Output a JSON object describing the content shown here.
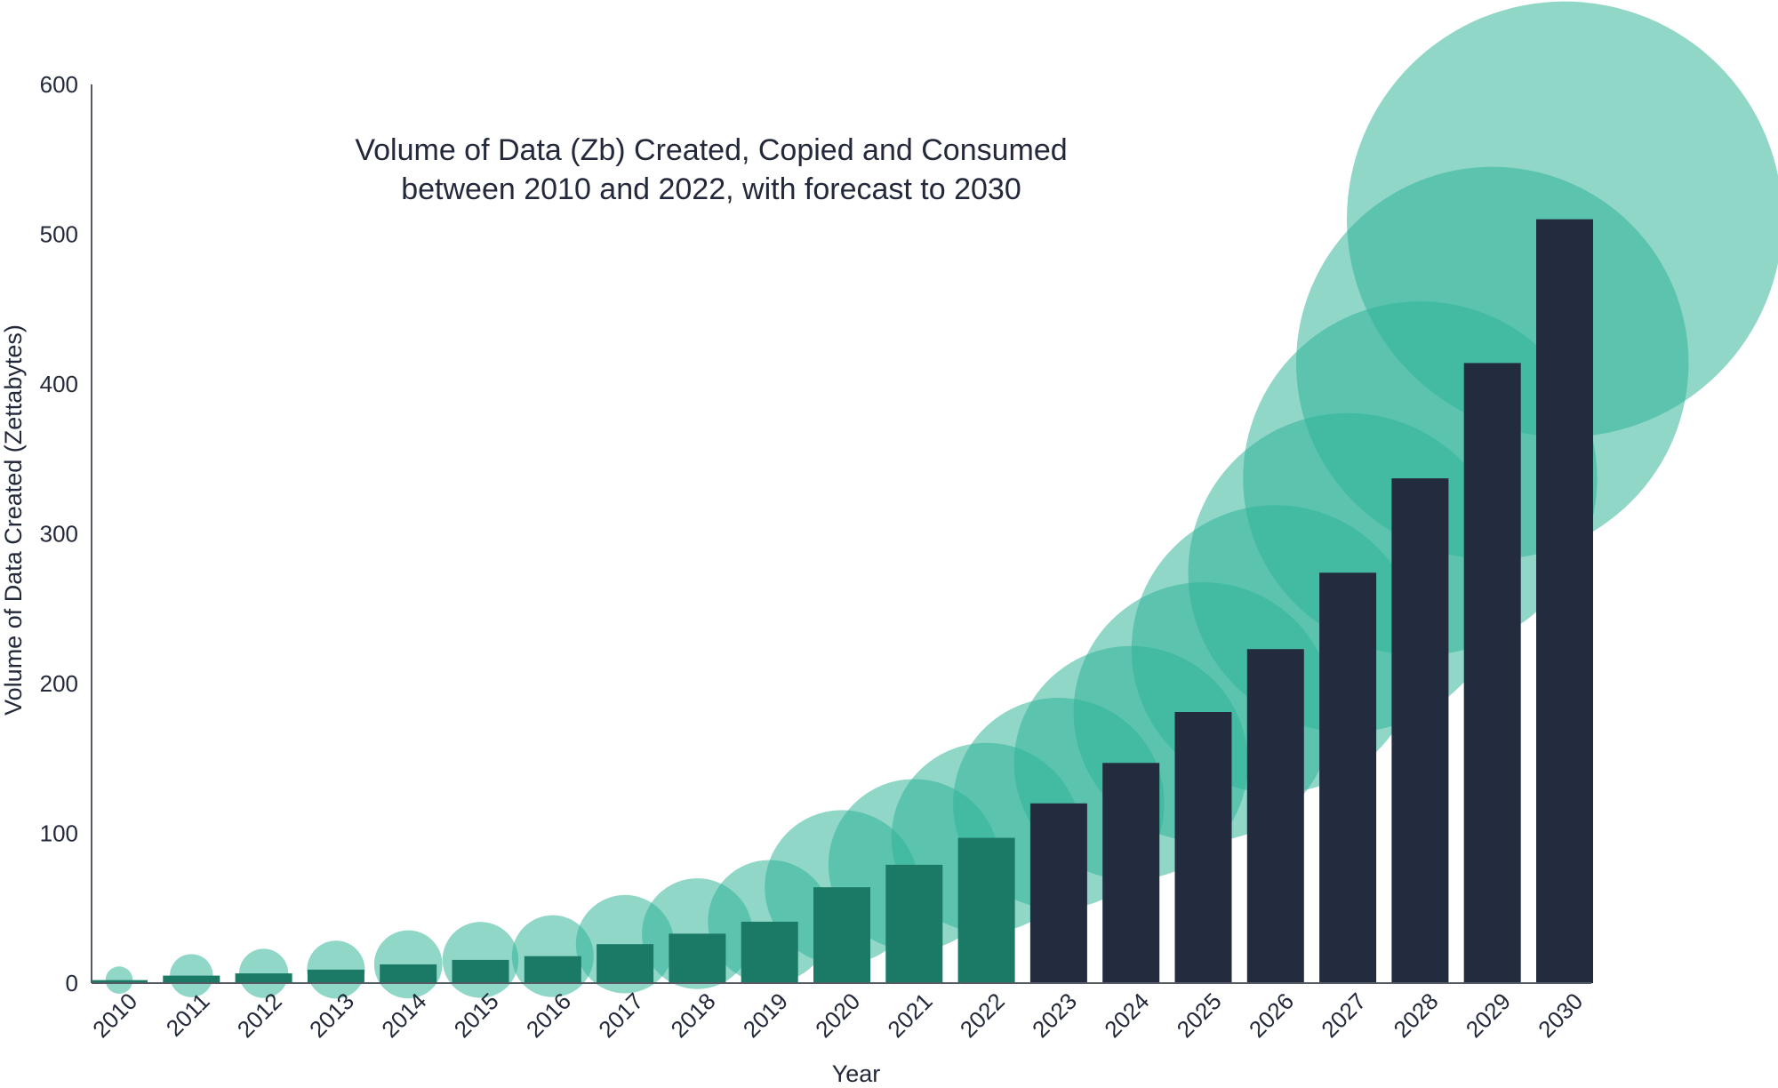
{
  "chart_data": {
    "type": "bar",
    "title_lines": [
      "Volume of Data (Zb) Created, Copied and Consumed",
      "between 2010 and 2022, with forecast to 2030"
    ],
    "xlabel": "Year",
    "ylabel": "Volume of Data Created (Zettabytes)",
    "ylim": [
      0,
      600
    ],
    "yticks": [
      0,
      100,
      200,
      300,
      400,
      500,
      600
    ],
    "grid": false,
    "categories": [
      "2010",
      "2011",
      "2012",
      "2013",
      "2014",
      "2015",
      "2016",
      "2017",
      "2018",
      "2019",
      "2020",
      "2021",
      "2022",
      "2023",
      "2024",
      "2025",
      "2026",
      "2027",
      "2028",
      "2029",
      "2030"
    ],
    "values": [
      2,
      5,
      6.5,
      9,
      12.5,
      15.5,
      18,
      26,
      33,
      41,
      64,
      79,
      97,
      120,
      147,
      181,
      223,
      274,
      337,
      414,
      510
    ],
    "actual_through": "2022",
    "bubbles": "each bar topped by a circle whose size scales with the value",
    "colors": {
      "actual": "#1a7a66",
      "forecast": "#232b3e",
      "bubble": "#2db398",
      "text": "#23293a",
      "axis": "#555b66"
    }
  }
}
